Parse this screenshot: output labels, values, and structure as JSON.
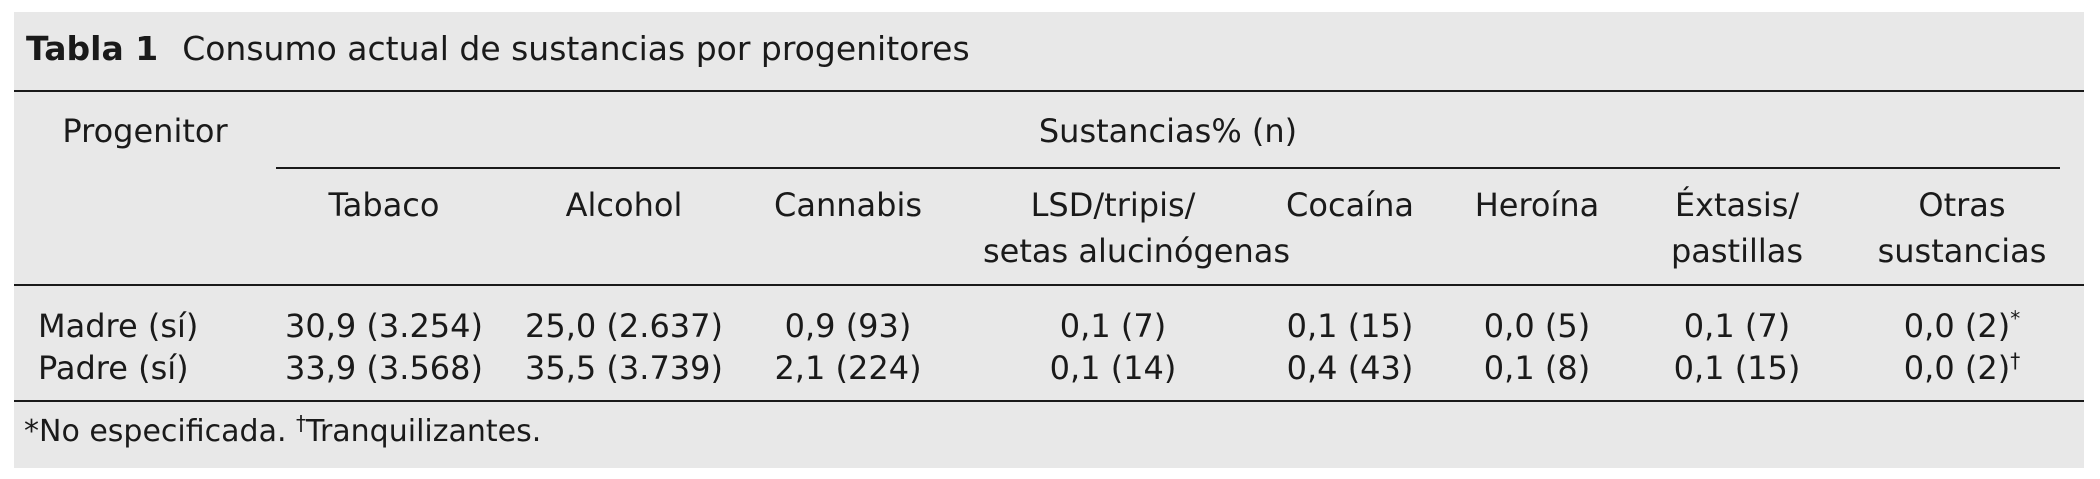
{
  "caption": {
    "label": "Tabla 1",
    "title": "Consumo actual de sustancias por progenitores"
  },
  "table": {
    "row_header": "Progenitor",
    "group_header": "Sustancias% (n)",
    "columns": [
      [
        "Tabaco"
      ],
      [
        "Alcohol"
      ],
      [
        "Cannabis"
      ],
      [
        "LSD/tripis/",
        "setas alucinógenas"
      ],
      [
        "Cocaína"
      ],
      [
        "Heroína"
      ],
      [
        "Éxtasis/",
        "pastillas"
      ],
      [
        "Otras",
        "sustancias"
      ]
    ],
    "rows": [
      {
        "label": "Madre (sí)",
        "cells": [
          "30,9 (3.254)",
          "25,0 (2.637)",
          "0,9 (93)",
          "0,1 (7)",
          "0,1 (15)",
          "0,0 (5)",
          "0,1 (7)",
          "0,0 (2)"
        ],
        "last_mark": "*"
      },
      {
        "label": "Padre (sí)",
        "cells": [
          "33,9 (3.568)",
          "35,5 (3.739)",
          "2,1 (224)",
          "0,1 (14)",
          "0,4 (43)",
          "0,1 (8)",
          "0,1 (15)",
          "0,0 (2)"
        ],
        "last_mark": "†"
      }
    ]
  },
  "footnote": {
    "mark1": "*",
    "text1": "No especificada. ",
    "mark2": "†",
    "text2": "Tranquilizantes."
  }
}
